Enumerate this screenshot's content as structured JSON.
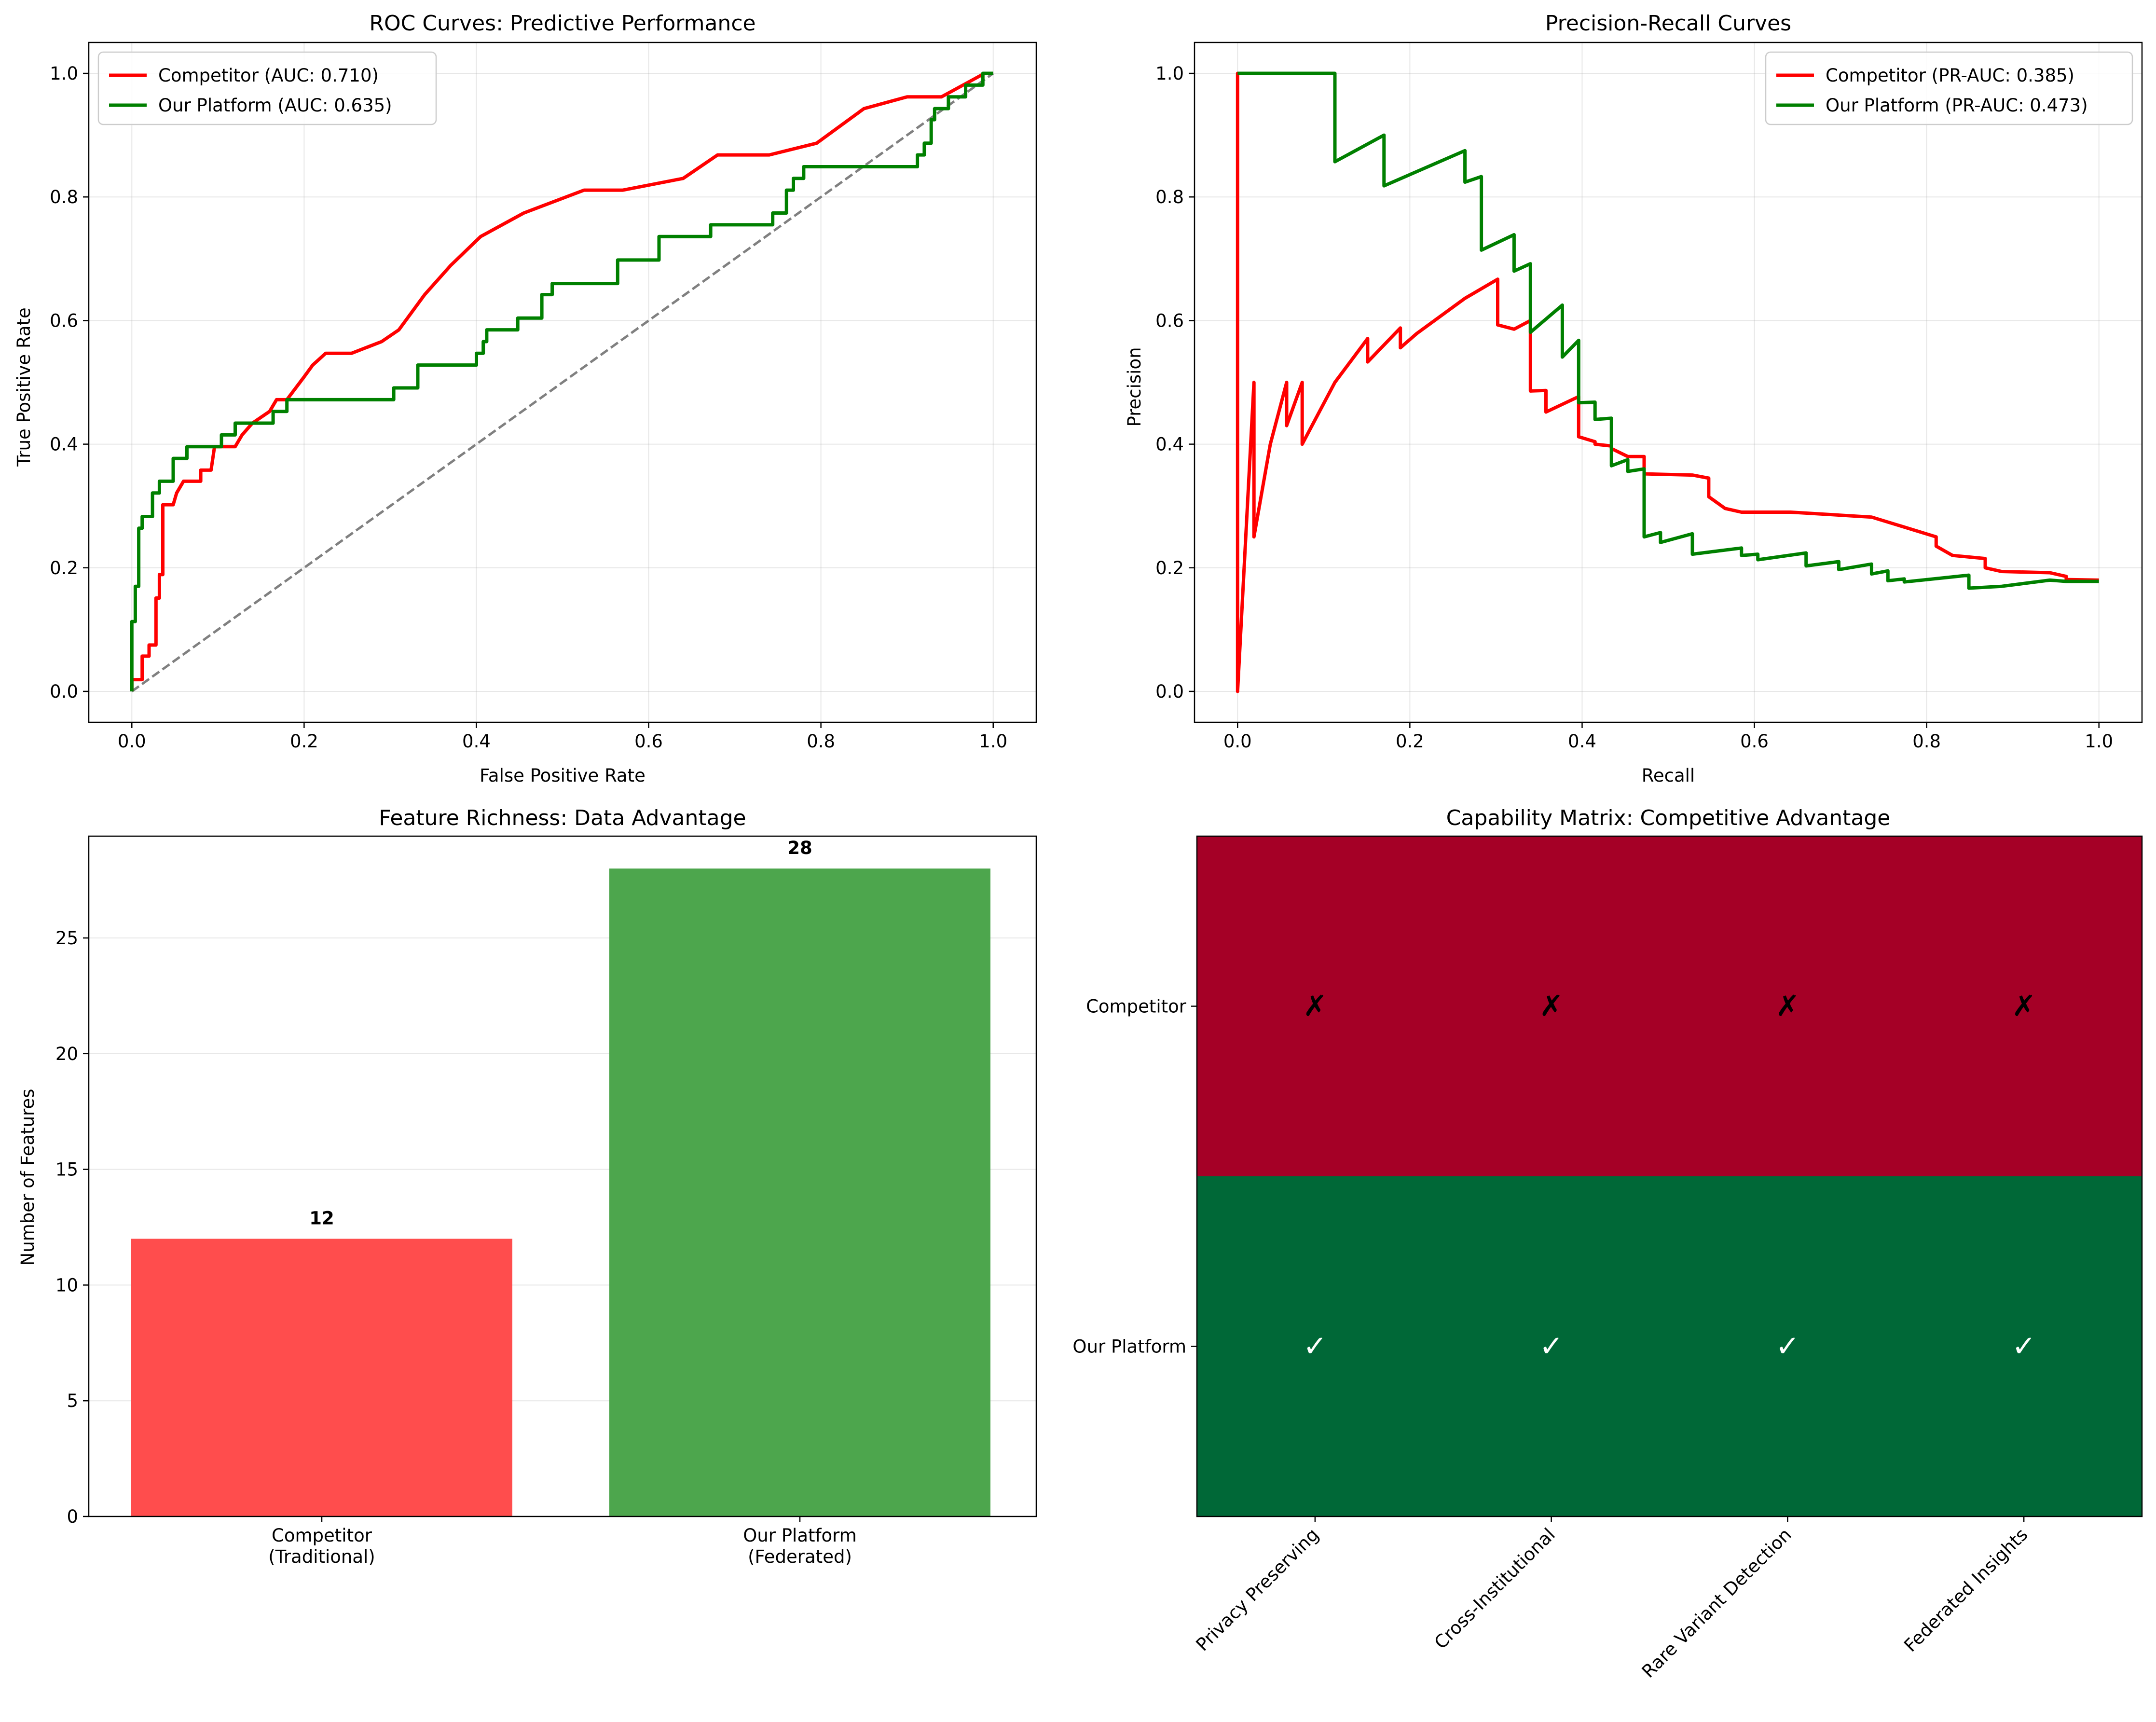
{
  "chart_data": [
    {
      "type": "line",
      "title": "ROC Curves: Predictive Performance",
      "xlabel": "False Positive Rate",
      "ylabel": "True Positive Rate",
      "xlim": [
        -0.05,
        1.05
      ],
      "ylim": [
        -0.05,
        1.05
      ],
      "xticks": [
        "0.0",
        "0.2",
        "0.4",
        "0.6",
        "0.8",
        "1.0"
      ],
      "yticks": [
        "0.0",
        "0.2",
        "0.4",
        "0.6",
        "0.8",
        "1.0"
      ],
      "grid": true,
      "legend": "upper-left",
      "series": [
        {
          "name": "Competitor (AUC: 0.710)",
          "color": "#ff0000",
          "points": [
            [
              0,
              0
            ],
            [
              0,
              0.019
            ],
            [
              0.012,
              0.019
            ],
            [
              0.012,
              0.057
            ],
            [
              0.02,
              0.057
            ],
            [
              0.02,
              0.075
            ],
            [
              0.028,
              0.075
            ],
            [
              0.028,
              0.151
            ],
            [
              0.032,
              0.151
            ],
            [
              0.032,
              0.189
            ],
            [
              0.036,
              0.189
            ],
            [
              0.036,
              0.302
            ],
            [
              0.048,
              0.302
            ],
            [
              0.052,
              0.321
            ],
            [
              0.06,
              0.34
            ],
            [
              0.08,
              0.34
            ],
            [
              0.08,
              0.358
            ],
            [
              0.092,
              0.358
            ],
            [
              0.096,
              0.396
            ],
            [
              0.12,
              0.396
            ],
            [
              0.128,
              0.415
            ],
            [
              0.14,
              0.434
            ],
            [
              0.16,
              0.453
            ],
            [
              0.168,
              0.472
            ],
            [
              0.18,
              0.472
            ],
            [
              0.2,
              0.509
            ],
            [
              0.21,
              0.528
            ],
            [
              0.225,
              0.547
            ],
            [
              0.255,
              0.547
            ],
            [
              0.29,
              0.566
            ],
            [
              0.31,
              0.585
            ],
            [
              0.34,
              0.642
            ],
            [
              0.37,
              0.689
            ],
            [
              0.405,
              0.736
            ],
            [
              0.455,
              0.774
            ],
            [
              0.525,
              0.811
            ],
            [
              0.57,
              0.811
            ],
            [
              0.64,
              0.83
            ],
            [
              0.68,
              0.868
            ],
            [
              0.74,
              0.868
            ],
            [
              0.795,
              0.887
            ],
            [
              0.85,
              0.943
            ],
            [
              0.9,
              0.962
            ],
            [
              0.94,
              0.962
            ],
            [
              0.99,
              1.0
            ],
            [
              1.0,
              1.0
            ]
          ]
        },
        {
          "name": "Our Platform (AUC: 0.635)",
          "color": "#008000",
          "points": [
            [
              0,
              0
            ],
            [
              0,
              0.113
            ],
            [
              0.004,
              0.113
            ],
            [
              0.004,
              0.17
            ],
            [
              0.008,
              0.17
            ],
            [
              0.008,
              0.264
            ],
            [
              0.012,
              0.264
            ],
            [
              0.012,
              0.283
            ],
            [
              0.024,
              0.283
            ],
            [
              0.024,
              0.321
            ],
            [
              0.032,
              0.321
            ],
            [
              0.032,
              0.34
            ],
            [
              0.048,
              0.34
            ],
            [
              0.048,
              0.377
            ],
            [
              0.064,
              0.377
            ],
            [
              0.064,
              0.396
            ],
            [
              0.104,
              0.396
            ],
            [
              0.104,
              0.415
            ],
            [
              0.12,
              0.415
            ],
            [
              0.12,
              0.434
            ],
            [
              0.164,
              0.434
            ],
            [
              0.164,
              0.453
            ],
            [
              0.18,
              0.453
            ],
            [
              0.18,
              0.472
            ],
            [
              0.304,
              0.472
            ],
            [
              0.304,
              0.491
            ],
            [
              0.332,
              0.491
            ],
            [
              0.332,
              0.528
            ],
            [
              0.4,
              0.528
            ],
            [
              0.4,
              0.547
            ],
            [
              0.408,
              0.547
            ],
            [
              0.408,
              0.566
            ],
            [
              0.412,
              0.566
            ],
            [
              0.412,
              0.585
            ],
            [
              0.448,
              0.585
            ],
            [
              0.448,
              0.604
            ],
            [
              0.476,
              0.604
            ],
            [
              0.476,
              0.642
            ],
            [
              0.488,
              0.642
            ],
            [
              0.488,
              0.66
            ],
            [
              0.564,
              0.66
            ],
            [
              0.564,
              0.698
            ],
            [
              0.612,
              0.698
            ],
            [
              0.612,
              0.736
            ],
            [
              0.672,
              0.736
            ],
            [
              0.672,
              0.755
            ],
            [
              0.744,
              0.755
            ],
            [
              0.744,
              0.774
            ],
            [
              0.76,
              0.774
            ],
            [
              0.76,
              0.811
            ],
            [
              0.768,
              0.811
            ],
            [
              0.768,
              0.83
            ],
            [
              0.78,
              0.83
            ],
            [
              0.78,
              0.849
            ],
            [
              0.912,
              0.849
            ],
            [
              0.912,
              0.868
            ],
            [
              0.92,
              0.868
            ],
            [
              0.92,
              0.887
            ],
            [
              0.928,
              0.887
            ],
            [
              0.928,
              0.925
            ],
            [
              0.932,
              0.925
            ],
            [
              0.932,
              0.943
            ],
            [
              0.948,
              0.943
            ],
            [
              0.948,
              0.962
            ],
            [
              0.968,
              0.962
            ],
            [
              0.968,
              0.981
            ],
            [
              0.988,
              0.981
            ],
            [
              0.988,
              1.0
            ],
            [
              1.0,
              1.0
            ]
          ]
        }
      ],
      "reference_line": {
        "points": [
          [
            0,
            0
          ],
          [
            1,
            1
          ]
        ],
        "color": "#808080",
        "style": "dashed"
      }
    },
    {
      "type": "line",
      "title": "Precision-Recall Curves",
      "xlabel": "Recall",
      "ylabel": "Precision",
      "xlim": [
        -0.05,
        1.05
      ],
      "ylim": [
        -0.05,
        1.05
      ],
      "xticks": [
        "0.0",
        "0.2",
        "0.4",
        "0.6",
        "0.8",
        "1.0"
      ],
      "yticks": [
        "0.0",
        "0.2",
        "0.4",
        "0.6",
        "0.8",
        "1.0"
      ],
      "grid": true,
      "legend": "upper-right",
      "series": [
        {
          "name": "Competitor (PR-AUC: 0.385)",
          "color": "#ff0000",
          "points": [
            [
              0,
              0
            ],
            [
              0,
              1.0
            ],
            [
              0.0,
              0.0
            ],
            [
              0.019,
              0.5
            ],
            [
              0.019,
              0.25
            ],
            [
              0.038,
              0.4
            ],
            [
              0.057,
              0.5
            ],
            [
              0.057,
              0.43
            ],
            [
              0.075,
              0.5
            ],
            [
              0.075,
              0.4
            ],
            [
              0.113,
              0.5
            ],
            [
              0.151,
              0.571
            ],
            [
              0.151,
              0.533
            ],
            [
              0.189,
              0.588
            ],
            [
              0.189,
              0.556
            ],
            [
              0.208,
              0.579
            ],
            [
              0.264,
              0.636
            ],
            [
              0.302,
              0.667
            ],
            [
              0.302,
              0.593
            ],
            [
              0.321,
              0.586
            ],
            [
              0.34,
              0.6
            ],
            [
              0.34,
              0.486
            ],
            [
              0.358,
              0.487
            ],
            [
              0.358,
              0.452
            ],
            [
              0.396,
              0.477
            ],
            [
              0.396,
              0.412
            ],
            [
              0.415,
              0.404
            ],
            [
              0.415,
              0.4
            ],
            [
              0.434,
              0.397
            ],
            [
              0.434,
              0.393
            ],
            [
              0.453,
              0.38
            ],
            [
              0.472,
              0.38
            ],
            [
              0.472,
              0.352
            ],
            [
              0.528,
              0.35
            ],
            [
              0.547,
              0.345
            ],
            [
              0.547,
              0.315
            ],
            [
              0.566,
              0.296
            ],
            [
              0.585,
              0.29
            ],
            [
              0.642,
              0.29
            ],
            [
              0.736,
              0.282
            ],
            [
              0.811,
              0.25
            ],
            [
              0.811,
              0.235
            ],
            [
              0.83,
              0.22
            ],
            [
              0.868,
              0.215
            ],
            [
              0.868,
              0.2
            ],
            [
              0.887,
              0.194
            ],
            [
              0.943,
              0.192
            ],
            [
              0.962,
              0.186
            ],
            [
              0.962,
              0.181
            ],
            [
              1.0,
              0.18
            ]
          ]
        },
        {
          "name": "Our Platform (PR-AUC: 0.473)",
          "color": "#008000",
          "points": [
            [
              0,
              1.0
            ],
            [
              0.113,
              1.0
            ],
            [
              0.113,
              0.857
            ],
            [
              0.17,
              0.9
            ],
            [
              0.17,
              0.818
            ],
            [
              0.264,
              0.875
            ],
            [
              0.264,
              0.824
            ],
            [
              0.283,
              0.833
            ],
            [
              0.283,
              0.714
            ],
            [
              0.321,
              0.739
            ],
            [
              0.321,
              0.68
            ],
            [
              0.34,
              0.692
            ],
            [
              0.34,
              0.581
            ],
            [
              0.377,
              0.625
            ],
            [
              0.377,
              0.541
            ],
            [
              0.396,
              0.568
            ],
            [
              0.396,
              0.467
            ],
            [
              0.415,
              0.468
            ],
            [
              0.415,
              0.44
            ],
            [
              0.434,
              0.442
            ],
            [
              0.434,
              0.365
            ],
            [
              0.453,
              0.375
            ],
            [
              0.453,
              0.356
            ],
            [
              0.472,
              0.36
            ],
            [
              0.472,
              0.25
            ],
            [
              0.491,
              0.257
            ],
            [
              0.491,
              0.241
            ],
            [
              0.528,
              0.255
            ],
            [
              0.528,
              0.222
            ],
            [
              0.585,
              0.232
            ],
            [
              0.585,
              0.22
            ],
            [
              0.604,
              0.222
            ],
            [
              0.604,
              0.213
            ],
            [
              0.66,
              0.224
            ],
            [
              0.66,
              0.203
            ],
            [
              0.698,
              0.21
            ],
            [
              0.698,
              0.197
            ],
            [
              0.736,
              0.206
            ],
            [
              0.736,
              0.19
            ],
            [
              0.755,
              0.195
            ],
            [
              0.755,
              0.179
            ],
            [
              0.774,
              0.182
            ],
            [
              0.774,
              0.177
            ],
            [
              0.849,
              0.188
            ],
            [
              0.849,
              0.167
            ],
            [
              0.887,
              0.17
            ],
            [
              0.943,
              0.18
            ],
            [
              0.962,
              0.178
            ],
            [
              1.0,
              0.178
            ]
          ]
        }
      ]
    },
    {
      "type": "bar",
      "title": "Feature Richness: Data Advantage",
      "ylabel": "Number of Features",
      "categories": [
        "Competitor\n(Traditional)",
        "Our Platform\n(Federated)"
      ],
      "values": [
        12,
        28
      ],
      "value_labels": [
        "12",
        "28"
      ],
      "colors": [
        "#ff4d4d",
        "#4da64d"
      ],
      "ylim": [
        0,
        29.4
      ],
      "yticks": [
        "0",
        "5",
        "10",
        "15",
        "20",
        "25"
      ],
      "grid": true
    },
    {
      "type": "heatmap",
      "title": "Capability Matrix: Competitive Advantage",
      "rows": [
        "Competitor",
        "Our Platform"
      ],
      "columns": [
        "Privacy Preserving",
        "Cross-Institutional",
        "Rare Variant Detection",
        "Federated Insights"
      ],
      "values": [
        [
          0,
          0,
          0,
          0
        ],
        [
          1,
          1,
          1,
          1
        ]
      ],
      "cell_labels": [
        [
          "✗",
          "✗",
          "✗",
          "✗"
        ],
        [
          "✓",
          "✓",
          "✓",
          "✓"
        ]
      ],
      "colors": {
        "0": "#a50026",
        "1": "#006837"
      },
      "label_colors": {
        "0": "#000000",
        "1": "#ffffff"
      }
    }
  ]
}
